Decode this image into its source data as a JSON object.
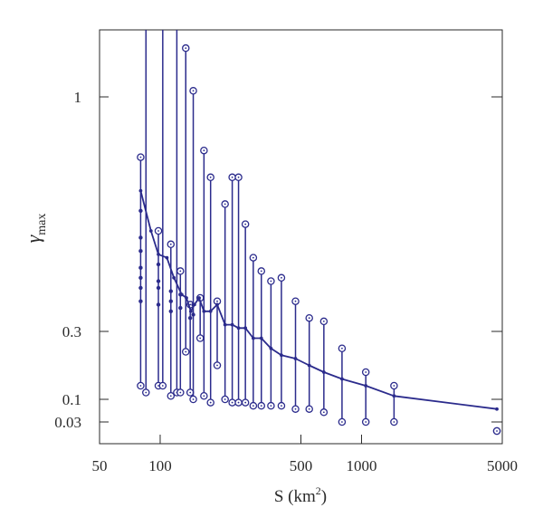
{
  "chart_data": {
    "type": "line",
    "xlabel": {
      "text": "S (km",
      "sup": "2",
      "close": ")"
    },
    "ylabel": {
      "symbol": "γ",
      "sub": "max"
    },
    "x_scale": "log",
    "y_scale": "piecewise-linear",
    "xlim": [
      50,
      5000
    ],
    "ylim": [
      0,
      1.22
    ],
    "xticks": [
      {
        "value": 50,
        "label": "50"
      },
      {
        "value": 100,
        "label": "100"
      },
      {
        "value": 500,
        "label": "500"
      },
      {
        "value": 1000,
        "label": "1000"
      },
      {
        "value": 5000,
        "label": "5000"
      }
    ],
    "yticks": [
      {
        "value": 1,
        "label": "1"
      },
      {
        "value": 0.3,
        "label": "0.3"
      },
      {
        "value": 0.1,
        "label": "0.1"
      },
      {
        "value": 0.03,
        "label": "0.03"
      }
    ],
    "grid": false,
    "colors": {
      "series": "#2b2b8c",
      "frame": "#2a2a2a"
    },
    "series": [
      {
        "role": "max_over_basin",
        "x": [
          80,
          90,
          98,
          108,
          117,
          128,
          135,
          142,
          148,
          156,
          165,
          178,
          192,
          210,
          228,
          245,
          265,
          290,
          318,
          355,
          400,
          470,
          550,
          650,
          800,
          1050,
          1450,
          4700
        ],
        "values": [
          0.72,
          0.6,
          0.53,
          0.52,
          0.46,
          0.41,
          0.4,
          0.36,
          0.38,
          0.4,
          0.36,
          0.36,
          0.38,
          0.32,
          0.32,
          0.31,
          0.31,
          0.28,
          0.28,
          0.25,
          0.23,
          0.22,
          0.2,
          0.18,
          0.16,
          0.14,
          0.11,
          0.07
        ]
      },
      {
        "role": "range_bars",
        "x": [
          80,
          85,
          98,
          103,
          113,
          121,
          126,
          134,
          141,
          146,
          158,
          165,
          178,
          192,
          210,
          228,
          245,
          265,
          290,
          318,
          355,
          400,
          470,
          550,
          650,
          800,
          1050,
          1450,
          4700
        ],
        "low": [
          0.14,
          0.12,
          0.14,
          0.14,
          0.11,
          0.12,
          0.12,
          0.24,
          0.12,
          0.1,
          0.28,
          0.11,
          0.09,
          0.2,
          0.1,
          0.09,
          0.09,
          0.09,
          0.08,
          0.08,
          0.08,
          0.08,
          0.07,
          0.07,
          0.06,
          0.03,
          0.03,
          0.03,
          0.0
        ],
        "high": [
          0.82,
          1.22,
          0.6,
          1.22,
          0.56,
          1.22,
          0.48,
          1.16,
          0.38,
          1.02,
          0.4,
          0.84,
          0.76,
          0.39,
          0.68,
          0.76,
          0.76,
          0.62,
          0.52,
          0.48,
          0.45,
          0.46,
          0.39,
          0.34,
          0.33,
          0.25,
          0.18,
          0.14,
          0.0
        ]
      },
      {
        "role": "basin_samples",
        "x": [
          80,
          80,
          80,
          80,
          80,
          80,
          80,
          98,
          98,
          98,
          98,
          113,
          113,
          113,
          126,
          126,
          141,
          146,
          146
        ],
        "values": [
          0.66,
          0.58,
          0.54,
          0.49,
          0.46,
          0.43,
          0.39,
          0.5,
          0.45,
          0.43,
          0.38,
          0.42,
          0.39,
          0.36,
          0.41,
          0.37,
          0.34,
          0.38,
          0.35
        ]
      }
    ]
  }
}
